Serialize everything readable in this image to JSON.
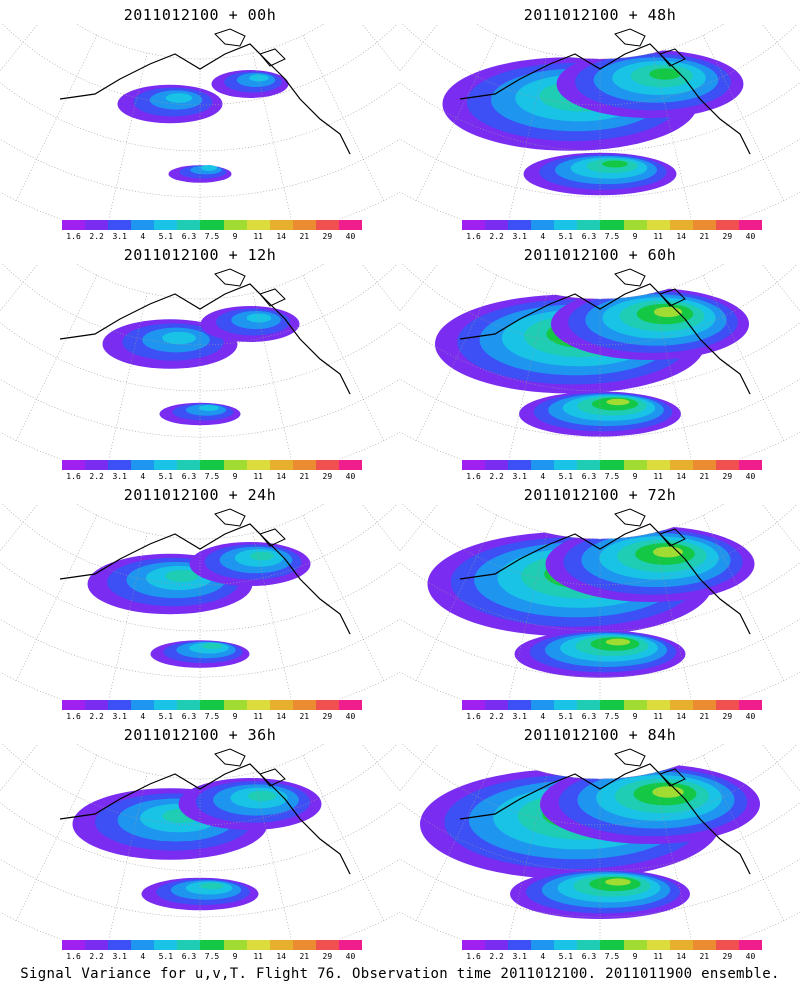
{
  "panels": [
    {
      "title": "2011012100 + 00h"
    },
    {
      "title": "2011012100 + 48h"
    },
    {
      "title": "2011012100 + 12h"
    },
    {
      "title": "2011012100 + 60h"
    },
    {
      "title": "2011012100 + 24h"
    },
    {
      "title": "2011012100 + 72h"
    },
    {
      "title": "2011012100 + 36h"
    },
    {
      "title": "2011012100 + 84h"
    }
  ],
  "colorbar": {
    "ticks": [
      "1.6",
      "2.2",
      "3.1",
      "4",
      "5.1",
      "6.3",
      "7.5",
      "9",
      "11",
      "14",
      "21",
      "29",
      "40"
    ],
    "colors": [
      "#a020f0",
      "#7a2cf0",
      "#3c50f5",
      "#1e96f0",
      "#18c3e6",
      "#1ecdb4",
      "#14c846",
      "#a0dc32",
      "#dcdc3c",
      "#e6af2d",
      "#eb8c32",
      "#f05050",
      "#f01e8c"
    ]
  },
  "footer": "Signal Variance for u,v,T. Flight 76. Observation time 2011012100. 2011011900 ensemble."
}
